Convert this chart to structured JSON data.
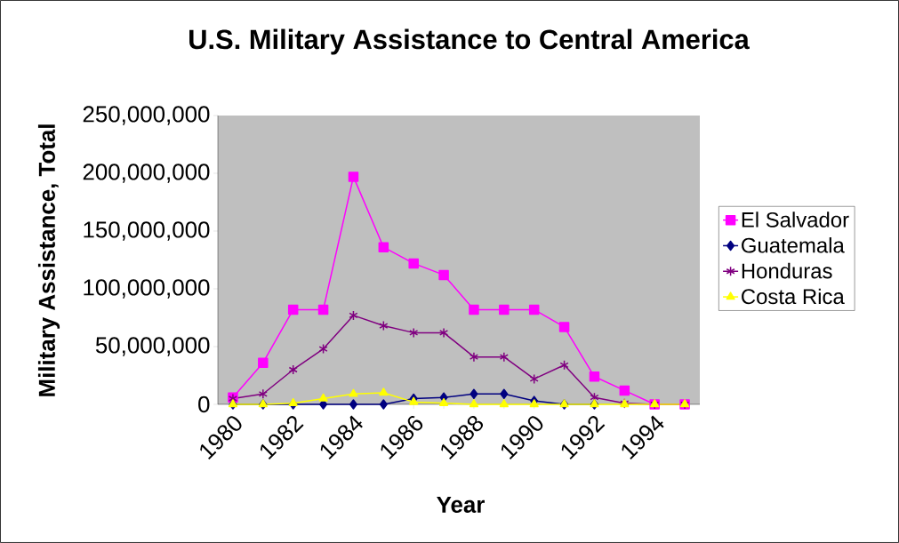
{
  "chart_data": {
    "type": "line",
    "title": "U.S. Military Assistance to Central America",
    "xlabel": "Year",
    "ylabel": "Military Assistance, Total",
    "categories": [
      "1980",
      null,
      "1982",
      null,
      "1984",
      null,
      "1986",
      null,
      "1988",
      null,
      "1990",
      null,
      "1992",
      null,
      "1994",
      null
    ],
    "series": [
      {
        "name": "El Salvador",
        "color": "#ff00ff",
        "marker": "square",
        "values": [
          6000000,
          36000000,
          82000000,
          82000000,
          197000000,
          136000000,
          122000000,
          112000000,
          82000000,
          82000000,
          82000000,
          67000000,
          24000000,
          12000000,
          0,
          0
        ]
      },
      {
        "name": "Guatemala",
        "color": "#000080",
        "marker": "diamond",
        "values": [
          0,
          0,
          0,
          0,
          0,
          0,
          5000000,
          6000000,
          9000000,
          9000000,
          3000000,
          0,
          0,
          null,
          null,
          null
        ]
      },
      {
        "name": "Honduras",
        "color": "#800080",
        "marker": "cross",
        "values": [
          5000000,
          9000000,
          30000000,
          48000000,
          77000000,
          68000000,
          62000000,
          62000000,
          41000000,
          41000000,
          22000000,
          34000000,
          6000000,
          1000000,
          0,
          0
        ]
      },
      {
        "name": "Costa Rica",
        "color": "#ffff00",
        "marker": "triangle",
        "values": [
          0,
          0,
          1000000,
          5000000,
          9000000,
          10000000,
          2000000,
          1000000,
          0,
          0,
          0,
          0,
          0,
          0,
          0,
          0
        ]
      }
    ],
    "ylim": [
      0,
      250000000
    ],
    "yticks": [
      0,
      {
        "value": 50000000,
        "label": "50,000,000"
      },
      {
        "value": 100000000,
        "label": "100,000,000"
      },
      {
        "value": 150000000,
        "label": "150,000,000"
      },
      {
        "value": 200000000,
        "label": "200,000,000"
      },
      {
        "value": 250000000,
        "label": "250,000,000"
      }
    ],
    "legend": "right",
    "grid": false,
    "line_style": "solid"
  }
}
